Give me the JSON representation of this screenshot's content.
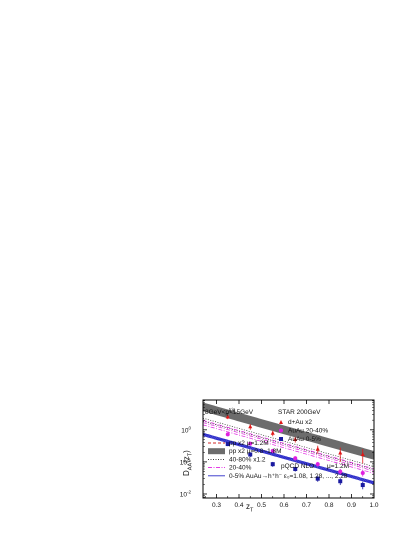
{
  "chart_data": {
    "type": "scatter",
    "y_scale": "log",
    "xlim": [
      0.24,
      1.0
    ],
    "ylim": [
      0.0075,
      8.5
    ],
    "xlabel": "z",
    "xlabel_sub": "T",
    "ylabel": "D",
    "ylabel_sub": "AA",
    "ylabel_arg": "(z",
    "ylabel_arg_sub": "T",
    "ylabel_close": ")",
    "x_ticks": [
      {
        "value": 0.3,
        "label": "0.3"
      },
      {
        "value": 0.4,
        "label": "0.4"
      },
      {
        "value": 0.5,
        "label": "0.5"
      },
      {
        "value": 0.6,
        "label": "0.6"
      },
      {
        "value": 0.7,
        "label": "0.7"
      },
      {
        "value": 0.8,
        "label": "0.8"
      },
      {
        "value": 0.9,
        "label": "0.9"
      },
      {
        "value": 1.0,
        "label": "1.0"
      }
    ],
    "y_ticks": [
      {
        "value": 1,
        "label": "10",
        "exp": "0"
      },
      {
        "value": 0.1,
        "label": "10",
        "exp": "-1"
      },
      {
        "value": 0.01,
        "label": "10",
        "exp": "-2"
      }
    ],
    "annotations": {
      "trigger": "8GeV<p",
      "trigger_sup": "trig",
      "trigger_sub": "T",
      "trigger_tail": "<15GeV",
      "collab": "STAR  200GeV"
    },
    "data_series": [
      {
        "name": "d+Au  x2",
        "marker": "triangle",
        "color": "#e01818",
        "x": [
          0.35,
          0.45,
          0.55,
          0.65,
          0.75,
          0.85,
          0.95
        ],
        "y": [
          2.5,
          1.25,
          0.78,
          0.5,
          0.25,
          0.19,
          0.17
        ],
        "err": [
          0.35,
          0.25,
          0.15,
          0.1,
          0.07,
          0.09,
          0.08
        ]
      },
      {
        "name": "AuAu  20-40%",
        "marker": "circle",
        "color": "#e020e0",
        "x": [
          0.35,
          0.45,
          0.55,
          0.65,
          0.75,
          0.85,
          0.95
        ],
        "y": [
          0.72,
          0.37,
          0.22,
          0.13,
          0.085,
          0.05,
          0.045
        ],
        "err": [
          0.08,
          0.05,
          0.03,
          0.02,
          0.015,
          0.01,
          0.01
        ]
      },
      {
        "name": "AuAu  0-5%",
        "marker": "square",
        "color": "#1a1aa0",
        "x": [
          0.35,
          0.45,
          0.55,
          0.65,
          0.75,
          0.85,
          0.95
        ],
        "y": [
          0.36,
          0.17,
          0.085,
          0.06,
          0.03,
          0.025,
          0.019
        ],
        "err": [
          0.05,
          0.03,
          0.015,
          0.01,
          0.006,
          0.006,
          0.005
        ]
      }
    ],
    "curves": [
      {
        "label": "pp x2 μ=1.2M",
        "style": "dash",
        "color": "#d02828",
        "x0": 4.2,
        "slope": 6.1,
        "shift": 0
      },
      {
        "label": "pp x2 μ=0.8~1.8M",
        "style": "band",
        "color": "#6c6c6c",
        "x0": 4.0,
        "slope": 6.1,
        "shift": 0
      },
      {
        "label": "40-80%  x1.2",
        "style": "dot",
        "color": "#222222",
        "x0": 1.75,
        "slope": 6.1,
        "shift": 0.09
      },
      {
        "label": "20-40%",
        "style": "dashdot",
        "color": "#e020e0",
        "x0": 1.5,
        "slope": 6.1,
        "shift": 0.07
      },
      {
        "label": "0-5% AuAu→h⁺h⁻  ε₀=1.08, 1.28, ..., 2.28",
        "style": "solid",
        "color": "#2828c8",
        "x0": 0.6,
        "slope": 6.1,
        "shift": 0.02
      }
    ],
    "legend_placement": "bottom-left",
    "pqcd_label": "pQCD NLO",
    "mu_label": "μ=1.2M"
  }
}
